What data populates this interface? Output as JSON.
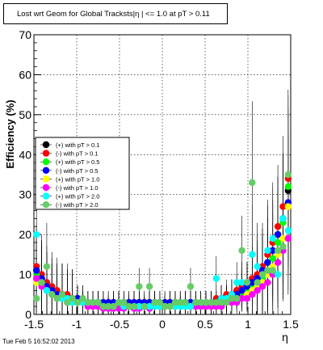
{
  "title": "Lost wrt Geom for Global Tracksts|η | <= 1.0 at pT > 0.11",
  "timestamp": "Tue Feb  5 16:52:02 2013",
  "chart_data": {
    "type": "scatter",
    "xlabel": "η",
    "ylabel": "Efficiency (%)",
    "xlim": [
      -1.5,
      1.5
    ],
    "ylim": [
      0,
      70
    ],
    "xticks": [
      "-1.5",
      "-1",
      "-0.5",
      "0",
      "0.5",
      "1",
      "1.5"
    ],
    "yticks": [
      "0",
      "10",
      "20",
      "30",
      "40",
      "50",
      "60",
      "70"
    ],
    "grid": true,
    "legend_position": "left-middle",
    "x": [
      -1.47,
      -1.41,
      -1.35,
      -1.29,
      -1.23,
      -1.17,
      -1.11,
      -1.05,
      -0.99,
      -0.93,
      -0.87,
      -0.81,
      -0.75,
      -0.69,
      -0.63,
      -0.57,
      -0.51,
      -0.45,
      -0.39,
      -0.33,
      -0.27,
      -0.21,
      -0.15,
      -0.09,
      -0.03,
      0.03,
      0.09,
      0.15,
      0.21,
      0.27,
      0.33,
      0.39,
      0.45,
      0.51,
      0.57,
      0.63,
      0.69,
      0.75,
      0.81,
      0.87,
      0.93,
      0.99,
      1.05,
      1.11,
      1.17,
      1.23,
      1.29,
      1.35,
      1.41,
      1.47
    ],
    "series": [
      {
        "name": "(+) with pT > 0.1",
        "color": "#000000",
        "values": [
          11,
          9,
          7,
          6,
          5,
          5,
          4,
          4,
          4,
          3,
          3,
          3,
          3,
          3,
          2.5,
          3,
          3,
          3,
          2.5,
          3,
          3,
          2.5,
          3,
          3,
          3,
          2.5,
          3,
          3,
          2.5,
          3,
          3,
          3,
          3,
          3,
          3,
          3,
          4,
          4,
          5,
          6,
          6,
          7,
          8,
          9,
          10,
          13,
          16,
          20,
          24,
          31
        ]
      },
      {
        "name": "(-) with pT > 0.1",
        "color": "#ff0000",
        "values": [
          12,
          10,
          8,
          7,
          6,
          5,
          5,
          4,
          4,
          4,
          3,
          3,
          3,
          3,
          3,
          3,
          3,
          3,
          3,
          3,
          3,
          3,
          3,
          3,
          3,
          3,
          3,
          3,
          3,
          3,
          3,
          3,
          3,
          3,
          3,
          4,
          4,
          5,
          5,
          6,
          7,
          8,
          9,
          10,
          12,
          15,
          18,
          22,
          27,
          34
        ]
      },
      {
        "name": "(+) with pT > 0.5",
        "color": "#00ff00",
        "values": [
          10,
          8,
          7,
          6,
          5,
          4,
          4,
          4,
          3,
          3,
          3,
          3,
          3,
          3,
          2.5,
          2.5,
          3,
          3,
          2.5,
          3,
          2.5,
          2.5,
          3,
          2.5,
          3,
          2.5,
          3,
          2.5,
          3,
          3,
          3,
          3,
          3,
          3,
          3,
          3,
          4,
          4,
          4,
          5,
          5,
          6,
          7,
          8,
          9,
          11,
          14,
          18,
          23,
          32
        ]
      },
      {
        "name": "(-) with pT > 0.5",
        "color": "#0000ff",
        "values": [
          11,
          9,
          7,
          6,
          5,
          5,
          4,
          4,
          4,
          3,
          3,
          3,
          3,
          3,
          3,
          3,
          3,
          3,
          3,
          3,
          3,
          3,
          3,
          3,
          3,
          3,
          3,
          3,
          3,
          3,
          3,
          3,
          3,
          3,
          3,
          3,
          4,
          4,
          5,
          5,
          6,
          7,
          8,
          9,
          11,
          13,
          16,
          20,
          24,
          28
        ]
      },
      {
        "name": "(+) with pT > 1.0",
        "color": "#ffff00",
        "values": [
          8,
          7,
          6,
          5,
          4,
          4,
          3,
          3,
          3,
          3,
          2,
          2,
          2,
          2,
          2,
          2,
          2,
          2,
          2,
          2,
          2,
          2,
          2,
          2,
          2,
          2,
          2,
          2,
          2,
          2,
          2,
          2,
          2,
          2,
          2,
          2,
          3,
          3,
          3,
          4,
          4,
          5,
          6,
          7,
          8,
          10,
          12,
          15,
          19,
          27
        ]
      },
      {
        "name": "(-) with pT > 1.0",
        "color": "#ff00ff",
        "values": [
          9,
          7,
          6,
          5,
          4,
          4,
          3,
          3,
          3,
          3,
          2,
          2,
          2,
          1.5,
          1.5,
          1.5,
          1.5,
          1.5,
          2,
          1.5,
          1.5,
          2,
          1.5,
          2,
          2,
          2,
          2,
          2,
          2,
          2,
          2,
          2,
          2,
          2,
          2,
          2,
          2,
          3,
          3,
          3,
          4,
          4,
          5,
          6,
          7,
          8,
          10,
          13,
          16,
          19
        ]
      },
      {
        "name": "(+) with pT > 2.0",
        "color": "#00ffff",
        "values": [
          20,
          8,
          6,
          5,
          4,
          4,
          4,
          3,
          3,
          3,
          3,
          3,
          3,
          2,
          2,
          2,
          3,
          2,
          2,
          2,
          2,
          2,
          2,
          2,
          2,
          2,
          2,
          2,
          2,
          2,
          2,
          3,
          3,
          3,
          3,
          9,
          4,
          4,
          5,
          8,
          8,
          8,
          15,
          12,
          10,
          16,
          19,
          10,
          24,
          21
        ]
      },
      {
        "name": "(-) with pT > 2.0",
        "color": "#66cc66",
        "values": [
          4,
          8,
          12,
          5,
          4,
          5,
          3,
          4,
          3,
          4,
          3,
          3,
          3,
          2,
          2,
          2,
          3,
          3,
          2,
          2,
          7,
          2,
          7,
          3,
          3,
          2,
          2,
          3,
          3,
          3,
          7,
          3,
          3,
          3,
          3,
          3,
          3,
          3,
          4,
          4,
          16,
          8,
          33,
          8,
          10,
          11,
          11,
          16,
          17,
          35
        ]
      }
    ]
  }
}
